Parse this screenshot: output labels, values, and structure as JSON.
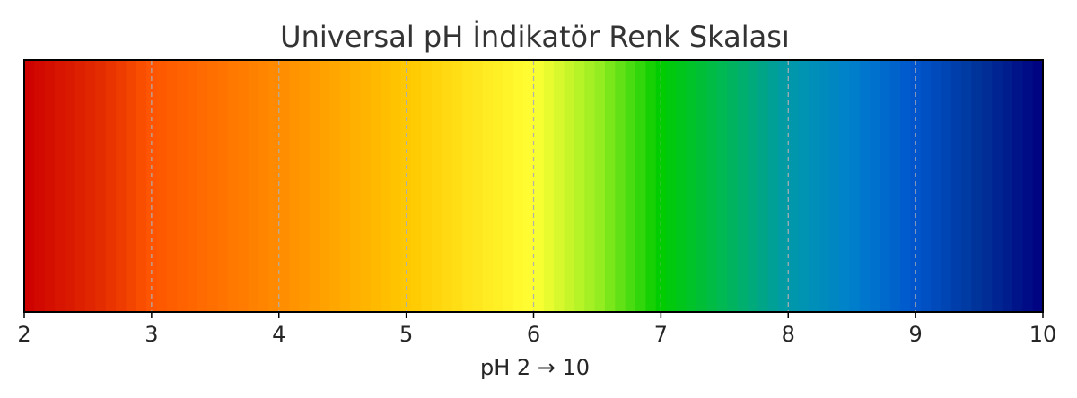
{
  "chart_data": {
    "type": "heatmap",
    "title": "Universal pH İndikatör Renk Skalası",
    "xlabel": "pH 2 → 10",
    "ylabel": "",
    "xlim": [
      2,
      10
    ],
    "x_ticks": [
      2,
      3,
      4,
      5,
      6,
      7,
      8,
      9,
      10
    ],
    "x_tick_labels": [
      "2",
      "3",
      "4",
      "5",
      "6",
      "7",
      "8",
      "9",
      "10"
    ],
    "grid": true,
    "legend": "none",
    "color_stops": [
      {
        "ph": 2.0,
        "color": "#cc0000"
      },
      {
        "ph": 2.6,
        "color": "#e32c00"
      },
      {
        "ph": 3.0,
        "color": "#ff5500"
      },
      {
        "ph": 3.5,
        "color": "#ff7000"
      },
      {
        "ph": 4.0,
        "color": "#ff8c00"
      },
      {
        "ph": 4.5,
        "color": "#ffaa00"
      },
      {
        "ph": 5.0,
        "color": "#ffc800"
      },
      {
        "ph": 5.5,
        "color": "#ffe41c"
      },
      {
        "ph": 6.0,
        "color": "#ffff33"
      },
      {
        "ph": 6.5,
        "color": "#99ee22"
      },
      {
        "ph": 7.0,
        "color": "#00cc00"
      },
      {
        "ph": 7.5,
        "color": "#00b855"
      },
      {
        "ph": 8.0,
        "color": "#0099aa"
      },
      {
        "ph": 8.5,
        "color": "#0080cc"
      },
      {
        "ph": 9.0,
        "color": "#0055cc"
      },
      {
        "ph": 9.5,
        "color": "#003399"
      },
      {
        "ph": 10.0,
        "color": "#000080"
      }
    ]
  }
}
